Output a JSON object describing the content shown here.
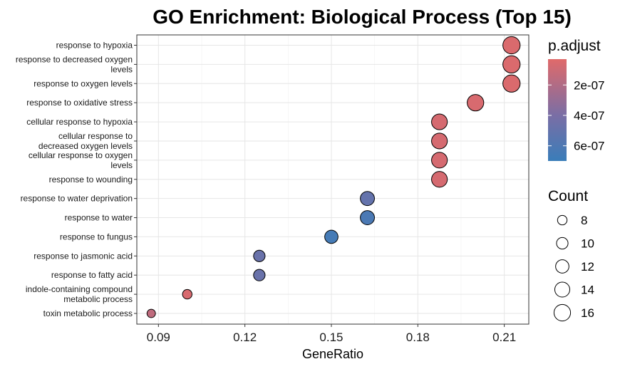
{
  "chart_data": {
    "type": "scatter",
    "title": "GO Enrichment: Biological Process (Top 15)",
    "xlabel": "GeneRatio",
    "ylabel": "",
    "xlim": [
      0.0825,
      0.2185
    ],
    "x_ticks": [
      "0.09",
      "0.12",
      "0.15",
      "0.18",
      "0.21"
    ],
    "x_tick_values": [
      0.09,
      0.12,
      0.15,
      0.18,
      0.21
    ],
    "grid": true,
    "categories": [
      [
        "response to hypoxia"
      ],
      [
        "response to decreased oxygen",
        "levels"
      ],
      [
        "response to oxygen levels"
      ],
      [
        "response to oxidative stress"
      ],
      [
        "cellular response to hypoxia"
      ],
      [
        "cellular response to",
        "decreased oxygen levels"
      ],
      [
        "cellular response to oxygen",
        "levels"
      ],
      [
        "response to wounding"
      ],
      [
        "response to water deprivation"
      ],
      [
        "response to water"
      ],
      [
        "response to fungus"
      ],
      [
        "response to jasmonic acid"
      ],
      [
        "response to fatty acid"
      ],
      [
        "indole-containing compound",
        "metabolic process"
      ],
      [
        "toxin metabolic process"
      ]
    ],
    "points": [
      {
        "x": 0.2125,
        "count": 17,
        "p_adjust": 5e-08
      },
      {
        "x": 0.2125,
        "count": 17,
        "p_adjust": 5e-08
      },
      {
        "x": 0.2125,
        "count": 17,
        "p_adjust": 5e-08
      },
      {
        "x": 0.2,
        "count": 16,
        "p_adjust": 6e-08
      },
      {
        "x": 0.1875,
        "count": 15,
        "p_adjust": 7e-08
      },
      {
        "x": 0.1875,
        "count": 15,
        "p_adjust": 7e-08
      },
      {
        "x": 0.1875,
        "count": 15,
        "p_adjust": 7e-08
      },
      {
        "x": 0.1875,
        "count": 15,
        "p_adjust": 7e-08
      },
      {
        "x": 0.1625,
        "count": 13,
        "p_adjust": 5e-07
      },
      {
        "x": 0.1625,
        "count": 13,
        "p_adjust": 6.2e-07
      },
      {
        "x": 0.15,
        "count": 12,
        "p_adjust": 6.5e-07
      },
      {
        "x": 0.125,
        "count": 10,
        "p_adjust": 4.8e-07
      },
      {
        "x": 0.125,
        "count": 10,
        "p_adjust": 4.8e-07
      },
      {
        "x": 0.1,
        "count": 8,
        "p_adjust": 6e-08
      },
      {
        "x": 0.0875,
        "count": 7,
        "p_adjust": 1.5e-07
      }
    ],
    "color_legend": {
      "title": "p.adjust",
      "labels": [
        "2e-07",
        "4e-07",
        "6e-07"
      ],
      "values": [
        2e-07,
        4e-07,
        6e-07
      ],
      "range": [
        3e-08,
        7e-07
      ],
      "low_color": "#e06a6a",
      "high_color": "#3a7db9",
      "mid_color": "#7a6ea5"
    },
    "size_legend": {
      "title": "Count",
      "labels": [
        "8",
        "10",
        "12",
        "14",
        "16"
      ],
      "values": [
        8,
        10,
        12,
        14,
        16
      ]
    }
  }
}
